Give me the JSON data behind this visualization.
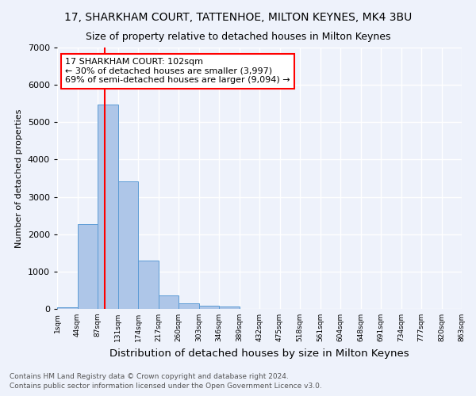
{
  "title1": "17, SHARKHAM COURT, TATTENHOE, MILTON KEYNES, MK4 3BU",
  "title2": "Size of property relative to detached houses in Milton Keynes",
  "xlabel": "Distribution of detached houses by size in Milton Keynes",
  "ylabel": "Number of detached properties",
  "footnote1": "Contains HM Land Registry data © Crown copyright and database right 2024.",
  "footnote2": "Contains public sector information licensed under the Open Government Licence v3.0.",
  "annotation_line1": "17 SHARKHAM COURT: 102sqm",
  "annotation_line2": "← 30% of detached houses are smaller (3,997)",
  "annotation_line3": "69% of semi-detached houses are larger (9,094) →",
  "bar_values": [
    50,
    2270,
    5480,
    3410,
    1290,
    370,
    150,
    80,
    60,
    0,
    0,
    0,
    0,
    0,
    0,
    0,
    0,
    0,
    0,
    0
  ],
  "categories": [
    "1sqm",
    "44sqm",
    "87sqm",
    "131sqm",
    "174sqm",
    "217sqm",
    "260sqm",
    "303sqm",
    "346sqm",
    "389sqm",
    "432sqm",
    "475sqm",
    "518sqm",
    "561sqm",
    "604sqm",
    "648sqm",
    "691sqm",
    "734sqm",
    "777sqm",
    "820sqm",
    "863sqm"
  ],
  "bar_color": "#aec6e8",
  "bar_edge_color": "#5b9bd5",
  "ylim": [
    0,
    7000
  ],
  "yticks": [
    0,
    1000,
    2000,
    3000,
    4000,
    5000,
    6000,
    7000
  ],
  "bg_color": "#eef2fb",
  "grid_color": "#ffffff",
  "title1_fontsize": 10,
  "title2_fontsize": 9,
  "xlabel_fontsize": 9.5,
  "ylabel_fontsize": 8,
  "annotation_fontsize": 8,
  "footnote_fontsize": 6.5
}
